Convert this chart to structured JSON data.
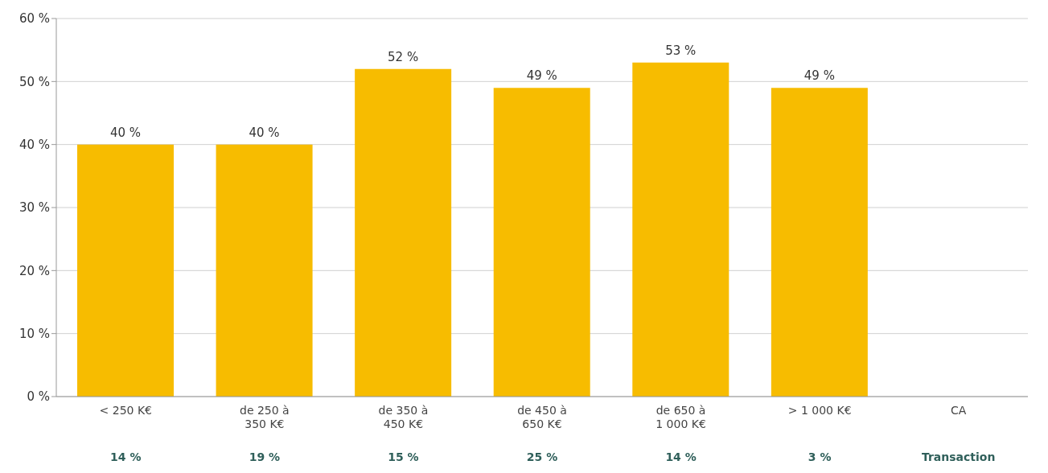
{
  "chart_data": {
    "type": "bar",
    "categories": [
      "< 250 K€",
      "de 250 à 350 K€",
      "de 350 à 450 K€",
      "de 450 à 650 K€",
      "de 650 à 1 000 K€",
      "> 1 000 K€",
      "CA"
    ],
    "values": [
      40,
      40,
      52,
      49,
      53,
      49,
      null
    ],
    "value_labels": [
      "40 %",
      "40 %",
      "52 %",
      "49 %",
      "53 %",
      "49 %",
      null
    ],
    "color": "#f7bc00",
    "ylim": [
      0,
      60
    ],
    "yticks": [
      {
        "value": 0,
        "label": "0 %"
      },
      {
        "value": 10,
        "label": "10 %"
      },
      {
        "value": 20,
        "label": "20 %"
      },
      {
        "value": 30,
        "label": "30 %"
      },
      {
        "value": 40,
        "label": "40 %"
      },
      {
        "value": 50,
        "label": "50 %"
      },
      {
        "value": 60,
        "label": "60 %"
      }
    ],
    "grid": "y",
    "annotations": [
      "14 %",
      "19 %",
      "15 %",
      "25 %",
      "14 %",
      "3 %",
      "Transaction"
    ]
  }
}
